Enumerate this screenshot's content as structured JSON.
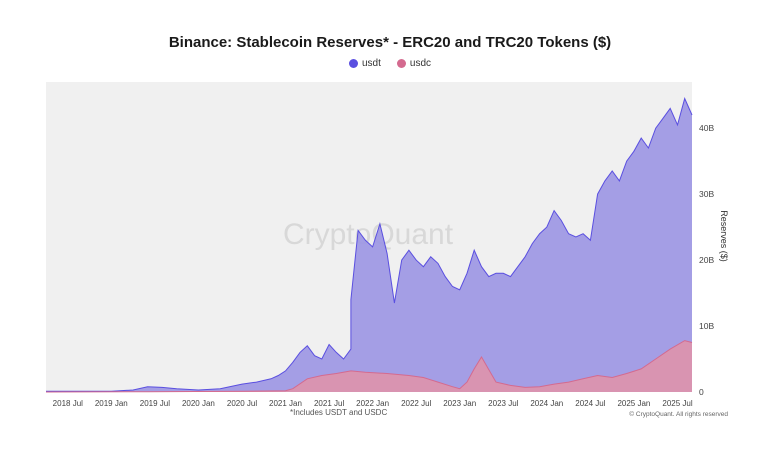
{
  "chart_data": {
    "type": "area",
    "title": "Binance: Stablecoin Reserves* - ERC20 and TRC20 Tokens ($)",
    "ylabel": "Reserves ($)",
    "xlabel": "",
    "ylim": [
      0,
      47
    ],
    "y_unit": "B",
    "y_ticks": [
      0,
      10,
      20,
      30,
      40
    ],
    "y_tick_labels": [
      "0",
      "10B",
      "20B",
      "30B",
      "40B"
    ],
    "x_tick_labels": [
      "2018 Jul",
      "2019 Jan",
      "2019 Jul",
      "2020 Jan",
      "2020 Jul",
      "2021 Jan",
      "2021 Jul",
      "2022 Jan",
      "2022 Jul",
      "2023 Jan",
      "2023 Jul",
      "2024 Jan",
      "2024 Jul",
      "2025 Jan",
      "2025 Jul"
    ],
    "x_tick_dates": [
      "2018-07",
      "2019-01",
      "2019-07",
      "2020-01",
      "2020-07",
      "2021-01",
      "2021-07",
      "2022-01",
      "2022-07",
      "2023-01",
      "2023-07",
      "2024-01",
      "2024-07",
      "2025-01",
      "2025-07"
    ],
    "xlim": [
      "2018-04",
      "2025-09"
    ],
    "grid": false,
    "legend_position": "top-center",
    "watermark": "CryptoQuant",
    "stacked": false,
    "series": [
      {
        "name": "usdt",
        "color": "#5a4fe0",
        "fill": "#9d97e4",
        "x": [
          "2018-04",
          "2018-09",
          "2019-01",
          "2019-04",
          "2019-06",
          "2019-08",
          "2019-10",
          "2020-01",
          "2020-04",
          "2020-07",
          "2020-09",
          "2020-11",
          "2020-12",
          "2021-01",
          "2021-02",
          "2021-03",
          "2021-04",
          "2021-05",
          "2021-06",
          "2021-07",
          "2021-08",
          "2021-09",
          "2021-10",
          "2021-10",
          "2021-11",
          "2021-12",
          "2022-01",
          "2022-02",
          "2022-03",
          "2022-04",
          "2022-05",
          "2022-06",
          "2022-07",
          "2022-08",
          "2022-09",
          "2022-10",
          "2022-11",
          "2022-12",
          "2023-01",
          "2023-02",
          "2023-03",
          "2023-04",
          "2023-05",
          "2023-06",
          "2023-07",
          "2023-08",
          "2023-09",
          "2023-10",
          "2023-11",
          "2023-12",
          "2024-01",
          "2024-02",
          "2024-03",
          "2024-04",
          "2024-05",
          "2024-06",
          "2024-07",
          "2024-08",
          "2024-09",
          "2024-10",
          "2024-11",
          "2024-12",
          "2025-01",
          "2025-02",
          "2025-03",
          "2025-04",
          "2025-05",
          "2025-06",
          "2025-07",
          "2025-08",
          "2025-09"
        ],
        "values": [
          0.1,
          0.1,
          0.1,
          0.3,
          0.8,
          0.7,
          0.5,
          0.3,
          0.5,
          1.2,
          1.5,
          2.0,
          2.5,
          3.2,
          4.5,
          6.0,
          7.0,
          5.5,
          5.0,
          7.2,
          6.0,
          5.0,
          6.5,
          14.0,
          24.5,
          23.0,
          22.0,
          25.5,
          21.0,
          13.5,
          20.0,
          21.5,
          20.0,
          19.0,
          20.5,
          19.5,
          17.5,
          16.0,
          15.5,
          18.0,
          21.5,
          19.0,
          17.5,
          18.0,
          18.0,
          17.5,
          19.0,
          20.5,
          22.5,
          24.0,
          25.0,
          27.5,
          26.0,
          24.0,
          23.5,
          24.0,
          23.0,
          30.0,
          32.0,
          33.5,
          32.0,
          35.0,
          36.5,
          38.5,
          37.0,
          40.0,
          41.5,
          43.0,
          40.5,
          44.5,
          42.0
        ]
      },
      {
        "name": "usdc",
        "color": "#d46a8f",
        "fill": "#dd94ad",
        "x": [
          "2018-04",
          "2019-06",
          "2020-07",
          "2021-01",
          "2021-02",
          "2021-04",
          "2021-06",
          "2021-08",
          "2021-10",
          "2021-12",
          "2022-03",
          "2022-06",
          "2022-08",
          "2022-10",
          "2022-12",
          "2023-01",
          "2023-02",
          "2023-03",
          "2023-04",
          "2023-06",
          "2023-08",
          "2023-10",
          "2023-12",
          "2024-02",
          "2024-04",
          "2024-06",
          "2024-08",
          "2024-10",
          "2024-12",
          "2025-02",
          "2025-04",
          "2025-06",
          "2025-08",
          "2025-09"
        ],
        "values": [
          0,
          0.05,
          0.1,
          0.2,
          0.5,
          2.0,
          2.5,
          2.8,
          3.2,
          3.0,
          2.8,
          2.5,
          2.2,
          1.5,
          0.8,
          0.5,
          1.5,
          3.5,
          5.3,
          1.5,
          1.0,
          0.7,
          0.8,
          1.2,
          1.5,
          2.0,
          2.5,
          2.2,
          2.8,
          3.5,
          5.0,
          6.5,
          7.8,
          7.5
        ]
      }
    ]
  },
  "footnote": "*Includes USDT and USDC",
  "copyright": "© CryptoQuant. All rights reserved"
}
